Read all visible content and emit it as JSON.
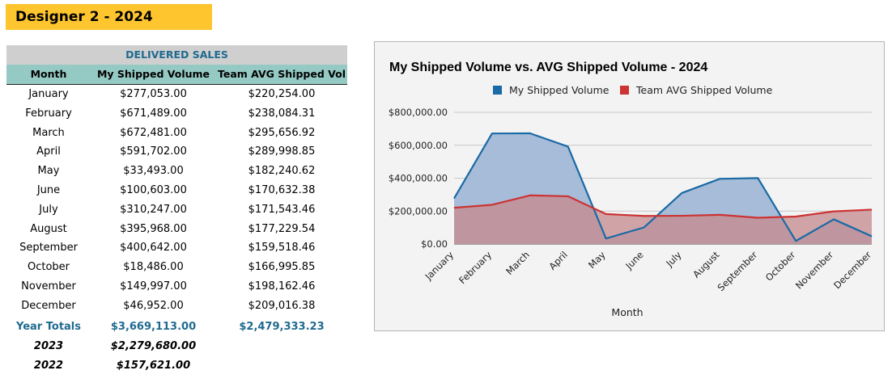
{
  "banner": {
    "title": "Designer 2 - 2024"
  },
  "table": {
    "caption": "DELIVERED SALES",
    "headers": [
      "Month",
      "My Shipped Volume",
      "Team AVG Shipped Vol"
    ],
    "rows": [
      [
        "January",
        "$277,053.00",
        "$220,254.00"
      ],
      [
        "February",
        "$671,489.00",
        "$238,084.31"
      ],
      [
        "March",
        "$672,481.00",
        "$295,656.92"
      ],
      [
        "April",
        "$591,702.00",
        "$289,998.85"
      ],
      [
        "May",
        "$33,493.00",
        "$182,240.62"
      ],
      [
        "June",
        "$100,603.00",
        "$170,632.38"
      ],
      [
        "July",
        "$310,247.00",
        "$171,543.46"
      ],
      [
        "August",
        "$395,968.00",
        "$177,229.54"
      ],
      [
        "September",
        "$400,642.00",
        "$159,518.46"
      ],
      [
        "October",
        "$18,486.00",
        "$166,995.85"
      ],
      [
        "November",
        "$149,997.00",
        "$198,162.46"
      ],
      [
        "December",
        "$46,952.00",
        "$209,016.38"
      ]
    ],
    "totals": {
      "label": "Year Totals",
      "my_total": "$3,669,113.00",
      "team_total": "$2,479,333.23"
    },
    "prior_years": [
      {
        "year": "2023",
        "value": "$2,279,680.00"
      },
      {
        "year": "2022",
        "value": "$157,621.00"
      }
    ]
  },
  "chart_data": {
    "type": "area",
    "title": "My Shipped Volume vs. AVG Shipped Volume - 2024",
    "xlabel": "Month",
    "ylabel": "",
    "categories": [
      "January",
      "February",
      "March",
      "April",
      "May",
      "June",
      "July",
      "August",
      "September",
      "October",
      "November",
      "December"
    ],
    "series": [
      {
        "name": "My Shipped Volume",
        "color": "#1a6aa5",
        "fill": "#a7bcd8",
        "values": [
          277053,
          671489,
          672481,
          591702,
          33493,
          100603,
          310247,
          395968,
          400642,
          18486,
          149997,
          46952
        ]
      },
      {
        "name": "Team AVG Shipped Volume",
        "color": "#cc3333",
        "fill": "#c58c8f",
        "values": [
          220254,
          238084.31,
          295656.92,
          289998.85,
          182240.62,
          170632.38,
          171543.46,
          177229.54,
          159518.46,
          166995.85,
          198162.46,
          209016.38
        ]
      }
    ],
    "ylim": [
      0,
      800000
    ],
    "yticks": [
      0,
      200000,
      400000,
      600000,
      800000
    ],
    "ytick_labels": [
      "$0.00",
      "$200,000.00",
      "$400,000.00",
      "$600,000.00",
      "$800,000.00"
    ],
    "grid": true,
    "legend": "top"
  }
}
